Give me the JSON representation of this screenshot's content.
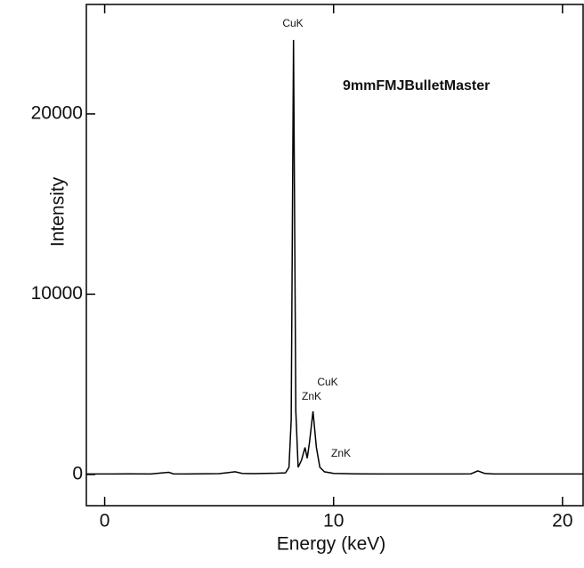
{
  "chart_data": {
    "type": "line",
    "color": "#000000",
    "annotations": [
      "CuK",
      "9mmFMJBulletMaster",
      "CuK",
      "ZnK",
      "ZnK"
    ],
    "xlabel": "Energy (keV)",
    "ylabel": "Intensity",
    "x": [
      -0.8,
      0,
      1,
      2,
      2.8,
      3,
      3.5,
      4,
      5,
      5.7,
      6,
      6.5,
      7,
      7.5,
      7.9,
      8.05,
      8.15,
      8.25,
      8.35,
      8.45,
      8.6,
      8.75,
      8.85,
      8.95,
      9.1,
      9.25,
      9.4,
      9.6,
      10,
      11,
      12,
      13,
      14,
      15,
      16,
      16.3,
      16.6,
      17,
      18,
      19,
      20,
      20.9
    ],
    "values": [
      30,
      30,
      40,
      30,
      120,
      40,
      30,
      40,
      50,
      150,
      60,
      50,
      60,
      70,
      90,
      400,
      3000,
      24100,
      3500,
      400,
      800,
      1500,
      900,
      1800,
      3500,
      1500,
      400,
      150,
      60,
      40,
      30,
      30,
      30,
      30,
      40,
      200,
      60,
      30,
      30,
      30,
      30,
      30
    ],
    "xlim": [
      -0.8,
      20.9
    ],
    "ylim": [
      -1730,
      26070
    ],
    "xticks": [
      0,
      10,
      20
    ],
    "yticks": [
      0,
      10000,
      20000
    ]
  }
}
